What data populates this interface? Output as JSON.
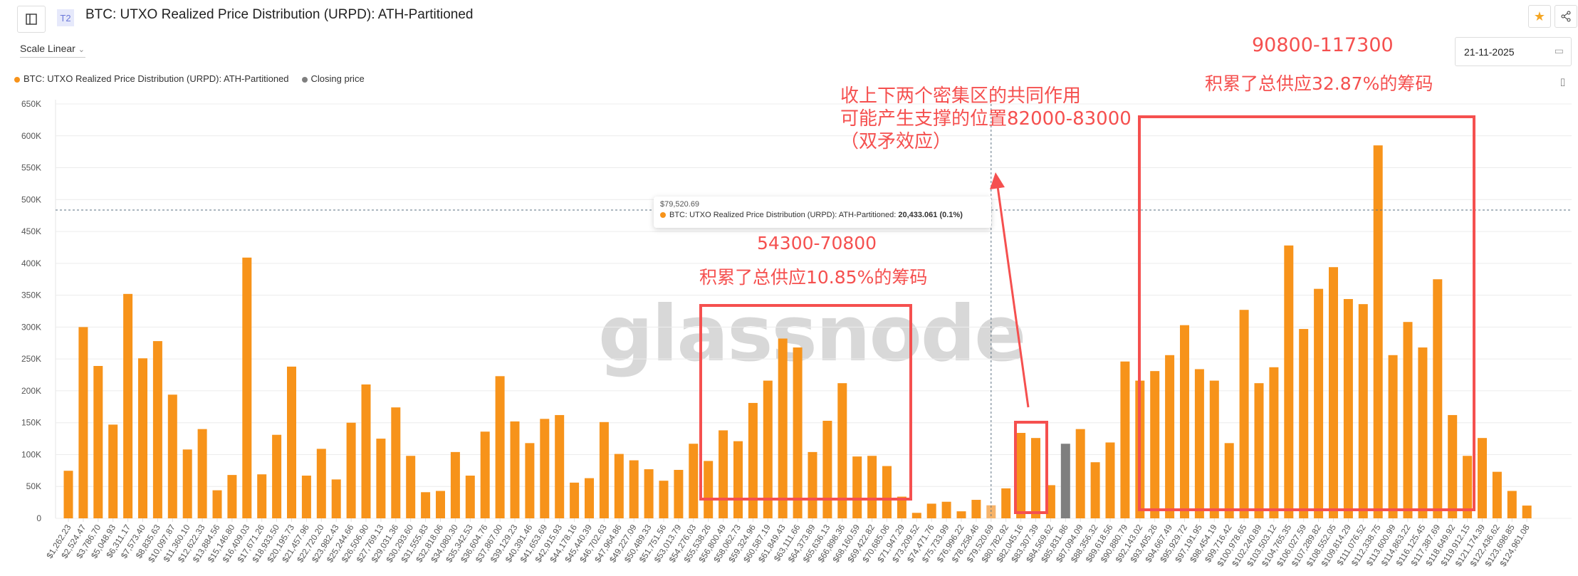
{
  "header": {
    "title": "BTC: UTXO Realized Price Distribution (URPD): ATH-Partitioned",
    "tier_badge": "T2",
    "sidebar_toggle_icon": "sidebar-icon",
    "favorite_icon": "star-icon",
    "share_icon": "share-icon"
  },
  "controls": {
    "scale_label": "Scale Linear",
    "date_value": "21-11-2025",
    "calendar_icon": "calendar-icon",
    "camera_icon": "camera-icon"
  },
  "legend": {
    "series": "BTC: UTXO Realized Price Distribution (URPD): ATH-Partitioned",
    "closing": "Closing price"
  },
  "colors": {
    "bar": "#f7931a",
    "closing_bar": "#7f7f7f",
    "hover_bar": "#f7b46a",
    "annotation": "#f5504f",
    "favorite": "#f5a623"
  },
  "watermark": "glassnode",
  "tooltip": {
    "price": "$79,520.69",
    "series": "BTC: UTXO Realized Price Distribution (URPD): ATH-Partitioned:",
    "value": "20,433.061 (0.1%)"
  },
  "annotations": {
    "top_range": "90800-117300",
    "top_supply": "积累了总供应32.87%的筹码",
    "mid_line1": "收上下两个密集区的共同作用",
    "mid_line2": "可能产生支撑的位置82000-83000",
    "mid_line3": "（双矛效应）",
    "low_range": "54300-70800",
    "low_supply": "积累了总供应10.85%的筹码"
  },
  "chart_data": {
    "type": "bar",
    "ylim": [
      0,
      650000
    ],
    "yticks": [
      "0",
      "50K",
      "100K",
      "150K",
      "200K",
      "250K",
      "300K",
      "350K",
      "400K",
      "450K",
      "500K",
      "550K",
      "600K",
      "650K"
    ],
    "grid": true,
    "legend_position": "top-left",
    "closing_price_category": "$85,831.86",
    "hover_category": "$79,520.69",
    "categories": [
      "$1,262.23",
      "$2,524.47",
      "$3,786.70",
      "$5,048.93",
      "$6,311.17",
      "$7,573.40",
      "$8,835.63",
      "$10,097.87",
      "$11,360.10",
      "$12,622.33",
      "$13,884.56",
      "$15,146.80",
      "$16,409.03",
      "$17,671.26",
      "$18,933.50",
      "$20,195.73",
      "$21,457.96",
      "$22,720.20",
      "$23,982.43",
      "$25,244.66",
      "$26,506.90",
      "$27,769.13",
      "$29,031.36",
      "$30,293.60",
      "$31,555.83",
      "$32,818.06",
      "$34,080.30",
      "$35,342.53",
      "$36,604.76",
      "$37,867.00",
      "$39,129.23",
      "$40,391.46",
      "$41,653.69",
      "$42,915.93",
      "$44,178.16",
      "$45,440.39",
      "$46,702.63",
      "$47,964.86",
      "$49,227.09",
      "$50,489.33",
      "$51,751.56",
      "$53,013.79",
      "$54,276.03",
      "$55,538.26",
      "$56,800.49",
      "$58,062.73",
      "$59,324.96",
      "$60,587.19",
      "$61,849.43",
      "$63,111.66",
      "$64,373.89",
      "$65,636.13",
      "$66,898.36",
      "$68,160.59",
      "$69,422.82",
      "$70,685.06",
      "$71,947.29",
      "$73,209.52",
      "$74,471.76",
      "$75,733.99",
      "$76,996.22",
      "$78,258.46",
      "$79,520.69",
      "$80,782.92",
      "$82,045.16",
      "$83,307.39",
      "$84,569.62",
      "$85,831.86",
      "$87,094.09",
      "$88,356.32",
      "$89,618.56",
      "$90,880.79",
      "$92,143.02",
      "$93,405.26",
      "$94,667.49",
      "$95,929.72",
      "$97,191.95",
      "$98,454.19",
      "$99,716.42",
      "$100,978.65",
      "$102,240.89",
      "$103,503.12",
      "$104,765.35",
      "$106,027.59",
      "$107,289.82",
      "$108,552.05",
      "$109,814.29",
      "$111,076.52",
      "$112,338.75",
      "$113,600.99",
      "$114,863.22",
      "$116,125.45",
      "$117,387.69",
      "$118,649.92",
      "$119,912.15",
      "$121,174.39",
      "$122,436.62",
      "$123,698.85",
      "$124,961.08"
    ],
    "values": [
      74600,
      300000,
      239000,
      147000,
      352000,
      251000,
      278000,
      194000,
      108000,
      140000,
      44000,
      68000,
      409000,
      69000,
      131000,
      238000,
      67000,
      109000,
      61000,
      150000,
      210000,
      125000,
      174000,
      98000,
      41000,
      43000,
      104000,
      67000,
      136000,
      223000,
      152000,
      118000,
      156000,
      162000,
      56000,
      63000,
      151000,
      101000,
      91000,
      77000,
      59000,
      76000,
      117000,
      90000,
      138000,
      121000,
      181000,
      216000,
      282000,
      268000,
      104000,
      153000,
      212000,
      97000,
      98000,
      82000,
      34000,
      8600,
      23000,
      26000,
      11000,
      29000,
      20433,
      47000,
      134000,
      126000,
      52000,
      117000,
      140000,
      88000,
      119000,
      246000,
      216000,
      231000,
      256000,
      303000,
      234000,
      216000,
      118000,
      327000,
      212000,
      237000,
      428000,
      297000,
      360000,
      394000,
      344000,
      336000,
      585000,
      256000,
      308000,
      268000,
      375000,
      162000,
      98000,
      126000,
      73000,
      43000,
      20000
    ]
  }
}
